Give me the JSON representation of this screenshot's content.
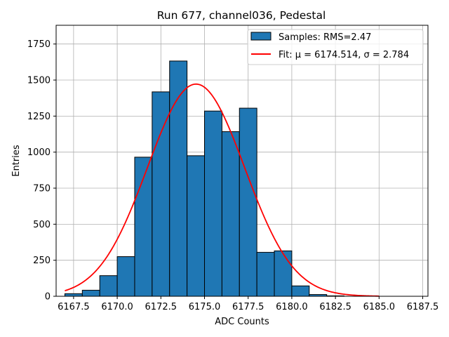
{
  "chart_data": {
    "type": "bar",
    "title": "Run 677, channel036, Pedestal",
    "xlabel": "ADC Counts",
    "ylabel": "Entries",
    "xlim": [
      6166.5,
      6187.8
    ],
    "ylim": [
      0,
      1880
    ],
    "xticks": [
      6167.5,
      6170.0,
      6172.5,
      6175.0,
      6177.5,
      6180.0,
      6182.5,
      6185.0,
      6187.5
    ],
    "xtick_labels": [
      "6167.5",
      "6170.0",
      "6172.5",
      "6175.0",
      "6177.5",
      "6180.0",
      "6182.5",
      "6185.0",
      "6187.5"
    ],
    "yticks": [
      0,
      250,
      500,
      750,
      1000,
      1250,
      1500,
      1750
    ],
    "ytick_labels": [
      "0",
      "250",
      "500",
      "750",
      "1000",
      "1250",
      "1500",
      "1750"
    ],
    "grid": true,
    "legend_position": "top-right",
    "histogram": {
      "name": "Samples: RMS=2.47",
      "color": "#1f77b4",
      "edge_color": "#000000",
      "bin_edges": [
        6167.0,
        6168.0,
        6169.0,
        6170.0,
        6171.0,
        6172.0,
        6173.0,
        6174.0,
        6175.0,
        6176.0,
        6177.0,
        6178.0,
        6179.0,
        6180.0,
        6181.0,
        6182.0,
        6183.0,
        6184.0,
        6185.0,
        6186.0,
        6187.0
      ],
      "counts": [
        18,
        42,
        143,
        275,
        965,
        1418,
        1632,
        975,
        1285,
        1142,
        1305,
        305,
        315,
        72,
        12,
        3,
        0,
        0,
        0,
        0
      ]
    },
    "fit": {
      "name": "Fit: μ = 6174.514, σ = 2.784",
      "color": "#ff0000",
      "mu": 6174.514,
      "sigma": 2.784,
      "amplitude": 1472,
      "x_range": [
        6167.0,
        6185.0
      ]
    }
  }
}
